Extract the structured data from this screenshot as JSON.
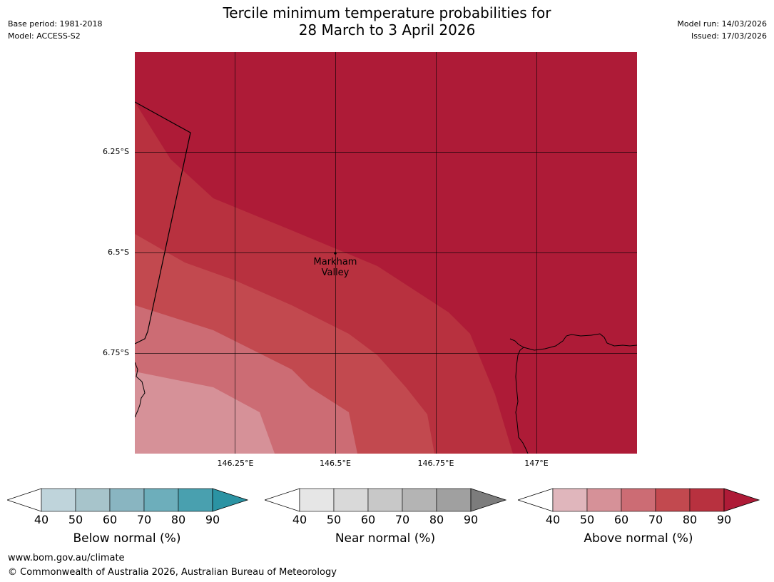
{
  "header": {
    "title": "Tercile minimum temperature probabilities for\n28 March to 3 April 2026",
    "base_period": "Base period: 1981-2018",
    "model": "Model: ACCESS-S2",
    "model_run": "Model run: 14/03/2026",
    "issued": "Issued: 17/03/2026"
  },
  "map": {
    "lat_labels": [
      "6.25°S",
      "6.5°S",
      "6.75°S"
    ],
    "lon_labels": [
      "146.25°E",
      "146.5°E",
      "146.75°E",
      "147°E"
    ],
    "location_label": "Markham\nValley",
    "category_colors": {
      "above_40_50": "#e0b6bc",
      "above_50_60": "#d69198",
      "above_60_70": "#cc6c74",
      "above_70_80": "#c2494f",
      "above_80_90": "#b8313f",
      "above_90_plus": "#ae1b37"
    }
  },
  "colorbars": {
    "below": {
      "title": "Below normal (%)",
      "ticks": [
        "40",
        "50",
        "60",
        "70",
        "80",
        "90"
      ],
      "colors": [
        "#bfd4db",
        "#a7c4cb",
        "#89b5c1",
        "#6daebb",
        "#49a0af"
      ],
      "extend_color": "#2b93a3"
    },
    "near": {
      "title": "Near normal (%)",
      "ticks": [
        "40",
        "50",
        "60",
        "70",
        "80",
        "90"
      ],
      "colors": [
        "#e6e6e6",
        "#d9d9d9",
        "#c8c8c8",
        "#b4b4b4",
        "#a0a0a0"
      ],
      "extend_color": "#7c7c7c"
    },
    "above": {
      "title": "Above normal (%)",
      "ticks": [
        "40",
        "50",
        "60",
        "70",
        "80",
        "90"
      ],
      "colors": [
        "#e0b6bc",
        "#d69198",
        "#cc6c74",
        "#c2494f",
        "#b8313f"
      ],
      "extend_color": "#ae1b37"
    }
  },
  "footer": {
    "url": "www.bom.gov.au/climate",
    "copyright": "© Commonwealth of Australia 2026, Australian Bureau of Meteorology"
  }
}
